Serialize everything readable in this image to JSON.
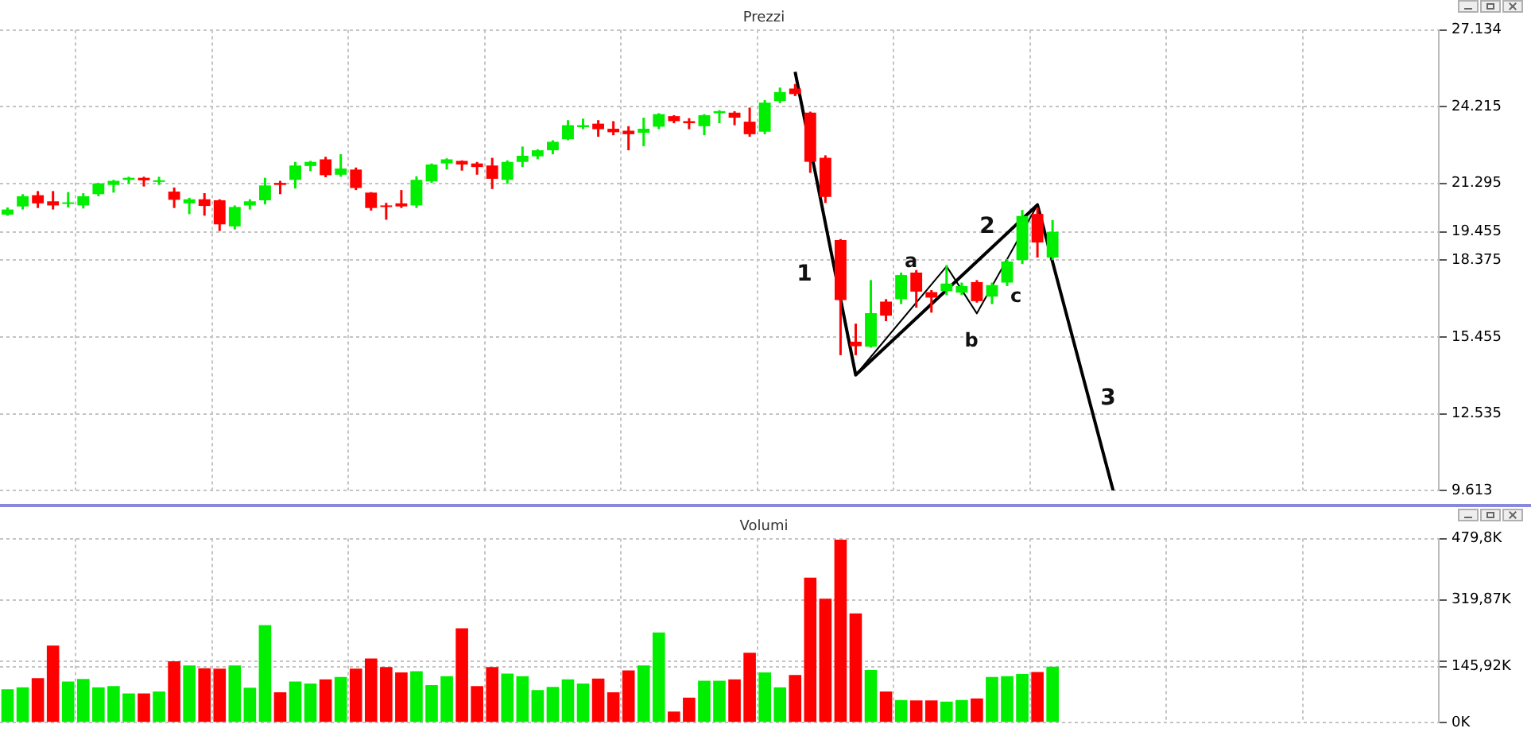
{
  "chart_data": [
    {
      "type": "candlestick",
      "title": "Prezzi",
      "tick_labels": "y",
      "grid": true,
      "categories": [
        null,
        null,
        null,
        null,
        null,
        null,
        null,
        null,
        null,
        null,
        null,
        null,
        null,
        null,
        null,
        null,
        null,
        null,
        null,
        null,
        null,
        null,
        null,
        null,
        null,
        null,
        null,
        null,
        null,
        null,
        null,
        null,
        null,
        null,
        null,
        null,
        null,
        null,
        null,
        null,
        null,
        null,
        null,
        null,
        null,
        null,
        null,
        null,
        null,
        null,
        null,
        null,
        null,
        null,
        null,
        null,
        null,
        null,
        null,
        null,
        null,
        null,
        null,
        null,
        null,
        null,
        null,
        null,
        null,
        null,
        null,
        null,
        null,
        null,
        null,
        null,
        null,
        null,
        null,
        null,
        null,
        null,
        null,
        null,
        null,
        null,
        null,
        null,
        null,
        null,
        null,
        null,
        null,
        null,
        null
      ],
      "ohlc": [
        [
          20107,
          20380,
          20068,
          20302
        ],
        [
          20419,
          20886,
          20302,
          20808
        ],
        [
          20847,
          21003,
          20360,
          20536
        ],
        [
          20614,
          21003,
          20302,
          20458
        ],
        [
          20516,
          20964,
          20380,
          20575
        ],
        [
          20458,
          20925,
          20341,
          20808
        ],
        [
          20886,
          21314,
          20808,
          21295
        ],
        [
          21237,
          21431,
          20945,
          21392
        ],
        [
          21431,
          21548,
          21276,
          21509
        ],
        [
          21509,
          21548,
          21178,
          21412
        ],
        [
          21353,
          21548,
          21237,
          21412
        ],
        [
          20984,
          21139,
          20360,
          20672
        ],
        [
          20536,
          20750,
          20127,
          20691
        ],
        [
          20691,
          20925,
          20068,
          20438
        ],
        [
          20652,
          20691,
          19484,
          19737
        ],
        [
          19660,
          20458,
          19543,
          20399
        ],
        [
          20458,
          20691,
          20302,
          20614
        ],
        [
          20652,
          21509,
          20497,
          21217
        ],
        [
          21314,
          21392,
          20886,
          21237
        ],
        [
          21431,
          22113,
          21100,
          21976
        ],
        [
          21957,
          22152,
          21762,
          22113
        ],
        [
          22210,
          22307,
          21529,
          21607
        ],
        [
          21626,
          22405,
          21548,
          21860
        ],
        [
          21821,
          21899,
          21042,
          21120
        ],
        [
          20945,
          20964,
          20263,
          20360
        ],
        [
          20458,
          20555,
          19913,
          20399
        ],
        [
          20536,
          21042,
          20360,
          20419
        ],
        [
          20458,
          21567,
          20360,
          21431
        ],
        [
          21373,
          22054,
          21314,
          22015
        ],
        [
          22054,
          22249,
          21821,
          22210
        ],
        [
          22152,
          22171,
          21782,
          22015
        ],
        [
          22054,
          22113,
          21626,
          21918
        ],
        [
          21976,
          22268,
          21081,
          21470
        ],
        [
          21431,
          22171,
          21276,
          22113
        ],
        [
          22113,
          22697,
          21918,
          22346
        ],
        [
          22326,
          22593,
          22212,
          22555
        ],
        [
          22555,
          22937,
          22402,
          22879
        ],
        [
          22975,
          23700,
          22937,
          23509
        ],
        [
          23433,
          23757,
          23356,
          23509
        ],
        [
          23566,
          23700,
          23070,
          23356
        ],
        [
          23375,
          23662,
          23127,
          23242
        ],
        [
          23299,
          23471,
          22555,
          23166
        ],
        [
          23223,
          23795,
          22708,
          23375
        ],
        [
          23452,
          23967,
          23356,
          23929
        ],
        [
          23853,
          23891,
          23585,
          23662
        ],
        [
          23662,
          23776,
          23356,
          23585
        ],
        [
          23471,
          23929,
          23127,
          23891
        ],
        [
          23967,
          24081,
          23585,
          24043
        ],
        [
          23986,
          24043,
          23509,
          23795
        ],
        [
          23643,
          24177,
          23070,
          23166
        ],
        [
          23261,
          24463,
          23166,
          24368
        ],
        [
          24425,
          24940,
          24349,
          24768
        ],
        [
          24902,
          25074,
          24616,
          24692
        ],
        [
          23986,
          24024,
          21697,
          22116
        ],
        [
          22269,
          22364,
          20552,
          20781
        ],
        [
          19142,
          19180,
          14761,
          16857
        ],
        [
          15275,
          15961,
          14761,
          15104
        ],
        [
          15085,
          17618,
          15047,
          16361
        ],
        [
          16799,
          16894,
          16056,
          16266
        ],
        [
          16894,
          17904,
          16704,
          17809
        ],
        [
          17904,
          17999,
          16571,
          17180
        ],
        [
          17161,
          17237,
          16380,
          16952
        ],
        [
          17199,
          18190,
          17047,
          17485
        ],
        [
          17142,
          17523,
          17047,
          17390
        ],
        [
          17542,
          17618,
          16761,
          16818
        ],
        [
          16990,
          17523,
          16704,
          17428
        ],
        [
          17523,
          18418,
          17390,
          18323
        ],
        [
          18380,
          20285,
          18228,
          20057
        ],
        [
          20133,
          20381,
          18476,
          19047
        ],
        [
          18476,
          19904,
          18380,
          19455
        ],
        null,
        null,
        null,
        null,
        null,
        null,
        null,
        null,
        null,
        null,
        null,
        null,
        null,
        null,
        null,
        null,
        null,
        null,
        null,
        null,
        null,
        null,
        null,
        null,
        null
      ],
      "colors": [
        "#00ee00",
        "#00ee00",
        "#ff0000",
        "#ff0000",
        "#00ee00",
        "#00ee00",
        "#00ee00",
        "#00ee00",
        "#00ee00",
        "#ff0000",
        "#00ee00",
        "#ff0000",
        "#00ee00",
        "#ff0000",
        "#ff0000",
        "#00ee00",
        "#00ee00",
        "#00ee00",
        "#ff0000",
        "#00ee00",
        "#00ee00",
        "#ff0000",
        "#00ee00",
        "#ff0000",
        "#ff0000",
        "#ff0000",
        "#ff0000",
        "#00ee00",
        "#00ee00",
        "#00ee00",
        "#ff0000",
        "#ff0000",
        "#ff0000",
        "#00ee00",
        "#00ee00",
        "#00ee00",
        "#00ee00",
        "#00ee00",
        "#00ee00",
        "#ff0000",
        "#ff0000",
        "#ff0000",
        "#00ee00",
        "#00ee00",
        "#ff0000",
        "#ff0000",
        "#00ee00",
        "#00ee00",
        "#ff0000",
        "#ff0000",
        "#00ee00",
        "#00ee00",
        "#ff0000",
        "#ff0000",
        "#ff0000",
        "#ff0000",
        "#ff0000",
        "#00ee00",
        "#ff0000",
        "#00ee00",
        "#ff0000",
        "#ff0000",
        "#00ee00",
        "#00ee00",
        "#ff0000",
        "#00ee00",
        "#00ee00",
        "#00ee00",
        "#ff0000",
        "#00ee00",
        null,
        null,
        null,
        null,
        null,
        null,
        null,
        null,
        null,
        null,
        null,
        null,
        null,
        null,
        null,
        null,
        null,
        null,
        null,
        null,
        null,
        null,
        null,
        null,
        null
      ],
      "series": [
        {
          "type": "line",
          "color": "#000000",
          "values": [
            null,
            null,
            null,
            null,
            null,
            null,
            null,
            null,
            null,
            null,
            null,
            null,
            null,
            null,
            null,
            null,
            null,
            null,
            null,
            null,
            null,
            null,
            null,
            null,
            null,
            null,
            null,
            null,
            null,
            null,
            null,
            null,
            null,
            null,
            null,
            null,
            null,
            null,
            null,
            null,
            null,
            null,
            null,
            null,
            null,
            null,
            null,
            null,
            null,
            null,
            null,
            null,
            25540,
            null,
            null,
            null,
            14010,
            null,
            null,
            null,
            null,
            null,
            null,
            null,
            null,
            null,
            null,
            null,
            20480,
            null,
            null,
            null,
            null,
            9613,
            null,
            null,
            null,
            null,
            null,
            null,
            null,
            null,
            null,
            null,
            null,
            null,
            null,
            null,
            null,
            null,
            null,
            null,
            null,
            null,
            null
          ]
        },
        {
          "type": "line",
          "color": "#000000",
          "values": [
            null,
            null,
            null,
            null,
            null,
            null,
            null,
            null,
            null,
            null,
            null,
            null,
            null,
            null,
            null,
            null,
            null,
            null,
            null,
            null,
            null,
            null,
            null,
            null,
            null,
            null,
            null,
            null,
            null,
            null,
            null,
            null,
            null,
            null,
            null,
            null,
            null,
            null,
            null,
            null,
            null,
            null,
            null,
            null,
            null,
            null,
            null,
            null,
            null,
            null,
            null,
            null,
            null,
            null,
            null,
            null,
            14010,
            null,
            null,
            null,
            null,
            null,
            18140,
            null,
            16350,
            null,
            null,
            null,
            20480,
            null,
            null,
            null,
            null,
            null,
            null,
            null,
            null,
            null,
            null,
            null,
            null,
            null,
            null,
            null,
            null,
            null,
            null,
            null,
            null,
            null,
            null,
            null,
            null,
            null,
            null
          ]
        }
      ],
      "ylim": [
        9613,
        27134
      ],
      "yticks": [
        {
          "value": 9613,
          "label": "9.613"
        },
        {
          "value": 12535,
          "label": "12.535"
        },
        {
          "value": 15455,
          "label": "15.455"
        },
        {
          "value": 18375,
          "label": "18.375"
        },
        {
          "value": 19455,
          "label": "19.455"
        },
        {
          "value": 21295,
          "label": "21.295"
        },
        {
          "value": 24215,
          "label": "24.215"
        },
        {
          "value": 27134,
          "label": "27.134"
        }
      ],
      "annotations": [
        "1",
        "2",
        "3",
        "a",
        "b",
        "c"
      ]
    },
    {
      "type": "bar",
      "title": "Volumi",
      "tick_labels": "y",
      "grid": true,
      "categories": [
        null,
        null,
        null,
        null,
        null,
        null,
        null,
        null,
        null,
        null,
        null,
        null,
        null,
        null,
        null,
        null,
        null,
        null,
        null,
        null,
        null,
        null,
        null,
        null,
        null,
        null,
        null,
        null,
        null,
        null,
        null,
        null,
        null,
        null,
        null,
        null,
        null,
        null,
        null,
        null,
        null,
        null,
        null,
        null,
        null,
        null,
        null,
        null,
        null,
        null,
        null,
        null,
        null,
        null,
        null,
        null,
        null,
        null,
        null,
        null,
        null,
        null,
        null,
        null,
        null,
        null,
        null,
        null,
        null,
        null,
        null,
        null,
        null,
        null,
        null,
        null,
        null,
        null,
        null,
        null,
        null,
        null,
        null,
        null,
        null,
        null,
        null,
        null,
        null,
        null,
        null,
        null,
        null,
        null,
        null
      ],
      "values": [
        87,
        92,
        116,
        201,
        107,
        114,
        92,
        95,
        76,
        76,
        81,
        160,
        149,
        142,
        141,
        149,
        91,
        254,
        79,
        107,
        102,
        113,
        119,
        141,
        167,
        145,
        131,
        134,
        98,
        121,
        246,
        95,
        145,
        128,
        121,
        85,
        93,
        113,
        102,
        115,
        79,
        136,
        149,
        235,
        29,
        65,
        109,
        109,
        113,
        182,
        131,
        92,
        124,
        378,
        323,
        477,
        285,
        137,
        81,
        59,
        58,
        58,
        55,
        59,
        63,
        119,
        121,
        127,
        132,
        145.92,
        null,
        null,
        null,
        null,
        null,
        null,
        null,
        null,
        null,
        null,
        null,
        null,
        null,
        null,
        null,
        null,
        null,
        null,
        null,
        null,
        null,
        null,
        null,
        null,
        null
      ],
      "colors": [
        "#00ee00",
        "#00ee00",
        "#ff0000",
        "#ff0000",
        "#00ee00",
        "#00ee00",
        "#00ee00",
        "#00ee00",
        "#00ee00",
        "#ff0000",
        "#00ee00",
        "#ff0000",
        "#00ee00",
        "#ff0000",
        "#ff0000",
        "#00ee00",
        "#00ee00",
        "#00ee00",
        "#ff0000",
        "#00ee00",
        "#00ee00",
        "#ff0000",
        "#00ee00",
        "#ff0000",
        "#ff0000",
        "#ff0000",
        "#ff0000",
        "#00ee00",
        "#00ee00",
        "#00ee00",
        "#ff0000",
        "#ff0000",
        "#ff0000",
        "#00ee00",
        "#00ee00",
        "#00ee00",
        "#00ee00",
        "#00ee00",
        "#00ee00",
        "#ff0000",
        "#ff0000",
        "#ff0000",
        "#00ee00",
        "#00ee00",
        "#ff0000",
        "#ff0000",
        "#00ee00",
        "#00ee00",
        "#ff0000",
        "#ff0000",
        "#00ee00",
        "#00ee00",
        "#ff0000",
        "#ff0000",
        "#ff0000",
        "#ff0000",
        "#ff0000",
        "#00ee00",
        "#ff0000",
        "#00ee00",
        "#ff0000",
        "#ff0000",
        "#00ee00",
        "#00ee00",
        "#ff0000",
        "#00ee00",
        "#00ee00",
        "#00ee00",
        "#ff0000",
        "#00ee00",
        null,
        null,
        null,
        null,
        null,
        null,
        null,
        null,
        null,
        null,
        null,
        null,
        null,
        null,
        null,
        null,
        null,
        null,
        null,
        null,
        null,
        null,
        null,
        null,
        null
      ],
      "ylim": [
        0,
        479.8
      ],
      "yticks": [
        {
          "value": 0,
          "label": "0K"
        },
        {
          "value": 145.92,
          "label": "145,92K"
        },
        {
          "value": 159.93,
          "label": null
        },
        {
          "value": 319.87,
          "label": "319,87K"
        },
        {
          "value": 479.8,
          "label": "479,8K"
        }
      ]
    }
  ]
}
